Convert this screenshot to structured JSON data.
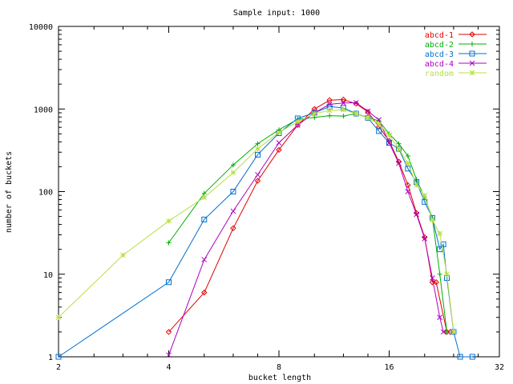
{
  "chart_data": {
    "type": "line",
    "title": "Sample input: 1000",
    "xlabel": "bucket length",
    "ylabel": "number of buckets",
    "x_scale": "log2",
    "y_scale": "log10",
    "xlim": [
      2,
      32
    ],
    "ylim": [
      1,
      10000
    ],
    "x_ticks": [
      2,
      4,
      8,
      16,
      32
    ],
    "x_tick_labels": [
      "2",
      "4",
      "8",
      "16",
      "32"
    ],
    "y_ticks": [
      1,
      10,
      100,
      1000,
      10000
    ],
    "y_tick_labels": [
      "1",
      "10",
      "100",
      "1000",
      "10000"
    ],
    "grid": false,
    "legend_position": "top-right",
    "series": [
      {
        "name": "abcd-1",
        "color": "#e00000",
        "marker": "diamond",
        "points": [
          [
            4,
            2
          ],
          [
            5,
            6
          ],
          [
            6,
            36
          ],
          [
            7,
            135
          ],
          [
            8,
            320
          ],
          [
            9,
            640
          ],
          [
            10,
            1000
          ],
          [
            11,
            1280
          ],
          [
            12,
            1300
          ],
          [
            13,
            1160
          ],
          [
            14,
            920
          ],
          [
            15,
            610
          ],
          [
            16,
            410
          ],
          [
            17,
            230
          ],
          [
            18,
            120
          ],
          [
            19,
            55
          ],
          [
            20,
            28
          ],
          [
            21,
            8
          ],
          [
            21.5,
            8
          ],
          [
            23,
            2
          ],
          [
            23.5,
            2
          ]
        ]
      },
      {
        "name": "abcd-2",
        "color": "#00b000",
        "marker": "plus",
        "points": [
          [
            4,
            24
          ],
          [
            5,
            95
          ],
          [
            6,
            210
          ],
          [
            7,
            380
          ],
          [
            8,
            560
          ],
          [
            9,
            750
          ],
          [
            10,
            790
          ],
          [
            11,
            830
          ],
          [
            12,
            820
          ],
          [
            13,
            880
          ],
          [
            14,
            790
          ],
          [
            15,
            720
          ],
          [
            16,
            500
          ],
          [
            17,
            380
          ],
          [
            18,
            270
          ],
          [
            19,
            140
          ],
          [
            20,
            85
          ],
          [
            21,
            48
          ],
          [
            22,
            10
          ],
          [
            23,
            2
          ]
        ]
      },
      {
        "name": "abcd-3",
        "color": "#0070d0",
        "marker": "square",
        "points": [
          [
            2,
            1
          ],
          [
            4,
            8
          ],
          [
            5,
            46
          ],
          [
            6,
            100
          ],
          [
            7,
            280
          ],
          [
            8,
            510
          ],
          [
            9,
            770
          ],
          [
            10,
            900
          ],
          [
            11,
            1070
          ],
          [
            12,
            1030
          ],
          [
            13,
            880
          ],
          [
            14,
            780
          ],
          [
            15,
            540
          ],
          [
            16,
            390
          ],
          [
            17,
            330
          ],
          [
            18,
            190
          ],
          [
            19,
            130
          ],
          [
            20,
            75
          ],
          [
            21,
            48
          ],
          [
            22,
            20
          ],
          [
            22.5,
            23
          ],
          [
            23,
            9
          ],
          [
            24,
            2
          ],
          [
            25,
            1
          ],
          [
            27,
            1
          ]
        ]
      },
      {
        "name": "abcd-4",
        "color": "#b000c0",
        "marker": "x",
        "points": [
          [
            4,
            1.05
          ],
          [
            5,
            15
          ],
          [
            6,
            58
          ],
          [
            7,
            160
          ],
          [
            8,
            390
          ],
          [
            9,
            640
          ],
          [
            10,
            900
          ],
          [
            11,
            1140
          ],
          [
            12,
            1180
          ],
          [
            13,
            1190
          ],
          [
            14,
            940
          ],
          [
            15,
            740
          ],
          [
            16,
            390
          ],
          [
            17,
            220
          ],
          [
            18,
            100
          ],
          [
            19,
            53
          ],
          [
            20,
            27
          ],
          [
            21,
            9
          ],
          [
            22,
            3
          ],
          [
            22.5,
            2
          ]
        ]
      },
      {
        "name": "random",
        "color": "#b8e040",
        "marker": "star",
        "points": [
          [
            2,
            3
          ],
          [
            3,
            17
          ],
          [
            4,
            44
          ],
          [
            5,
            85
          ],
          [
            6,
            170
          ],
          [
            7,
            330
          ],
          [
            8,
            520
          ],
          [
            9,
            700
          ],
          [
            10,
            880
          ],
          [
            11,
            960
          ],
          [
            12,
            980
          ],
          [
            13,
            880
          ],
          [
            14,
            780
          ],
          [
            15,
            660
          ],
          [
            16,
            480
          ],
          [
            17,
            330
          ],
          [
            18,
            220
          ],
          [
            19,
            120
          ],
          [
            20,
            90
          ],
          [
            21,
            45
          ],
          [
            22,
            31
          ],
          [
            23,
            10
          ],
          [
            24,
            2
          ]
        ]
      }
    ]
  }
}
